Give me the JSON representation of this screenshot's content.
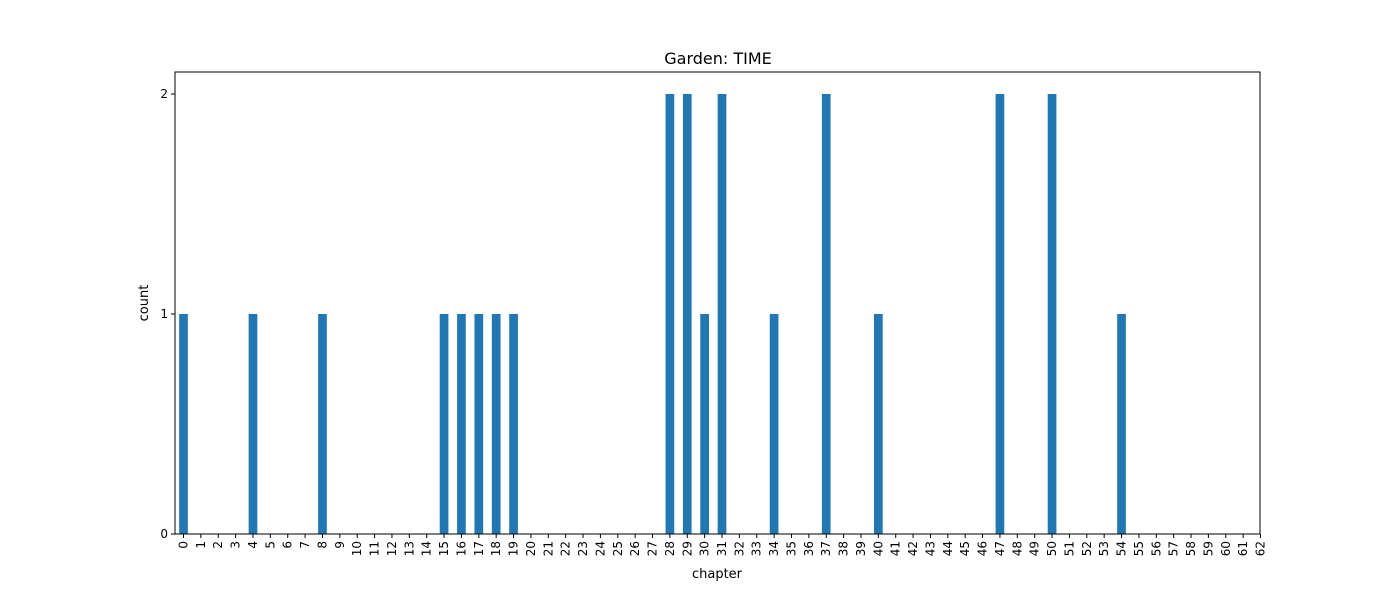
{
  "chart_data": {
    "type": "bar",
    "title": "Garden: TIME",
    "xlabel": "chapter",
    "ylabel": "count",
    "ylim": [
      0,
      2.1
    ],
    "yticks": [
      "0",
      "1",
      "2"
    ],
    "bar_color": "#1f77b4",
    "categories": [
      "0",
      "1",
      "2",
      "3",
      "4",
      "5",
      "6",
      "7",
      "8",
      "9",
      "10",
      "11",
      "12",
      "13",
      "14",
      "15",
      "16",
      "17",
      "18",
      "19",
      "20",
      "21",
      "22",
      "23",
      "24",
      "25",
      "26",
      "27",
      "28",
      "29",
      "30",
      "31",
      "32",
      "33",
      "34",
      "35",
      "36",
      "37",
      "38",
      "39",
      "40",
      "41",
      "42",
      "43",
      "44",
      "45",
      "46",
      "47",
      "48",
      "49",
      "50",
      "51",
      "52",
      "53",
      "54",
      "55",
      "56",
      "57",
      "58",
      "59",
      "60",
      "61",
      "62"
    ],
    "values": [
      1,
      0,
      0,
      0,
      1,
      0,
      0,
      0,
      1,
      0,
      0,
      0,
      0,
      0,
      0,
      1,
      1,
      1,
      1,
      1,
      0,
      0,
      0,
      0,
      0,
      0,
      0,
      0,
      2,
      2,
      1,
      2,
      0,
      0,
      1,
      0,
      0,
      2,
      0,
      0,
      1,
      0,
      0,
      0,
      0,
      0,
      0,
      2,
      0,
      0,
      2,
      0,
      0,
      0,
      1,
      0,
      0,
      0,
      0,
      0,
      0,
      0,
      0
    ]
  }
}
